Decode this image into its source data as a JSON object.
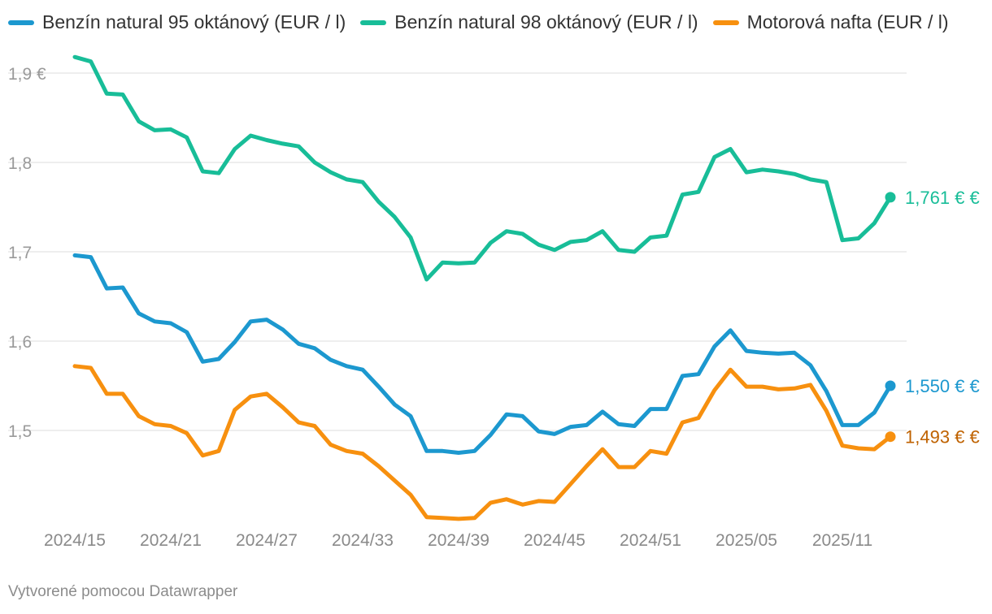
{
  "chart_data": {
    "type": "line",
    "title": "",
    "xlabel": "",
    "ylabel": "",
    "ylim": [
      1.4,
      1.92
    ],
    "y_ticks": [
      1.5,
      1.6,
      1.7,
      1.8,
      1.9
    ],
    "y_tick_labels": [
      "1,5",
      "1,6",
      "1,7",
      "1,8",
      "1,9 €"
    ],
    "x_tick_labels": [
      "2024/15",
      "2024/21",
      "2024/27",
      "2024/33",
      "2024/39",
      "2024/45",
      "2024/51",
      "2025/05",
      "2025/11"
    ],
    "x_tick_indices": [
      0,
      6,
      12,
      18,
      24,
      30,
      36,
      42,
      48
    ],
    "series": [
      {
        "name": "Benzín natural 95 oktánový (EUR / l)",
        "color": "#1c98cf",
        "end_label": "1,550 € €",
        "values": [
          1.696,
          1.694,
          1.659,
          1.66,
          1.631,
          1.622,
          1.62,
          1.61,
          1.577,
          1.58,
          1.599,
          1.622,
          1.624,
          1.613,
          1.597,
          1.592,
          1.579,
          1.572,
          1.568,
          1.549,
          1.529,
          1.516,
          1.477,
          1.477,
          1.475,
          1.477,
          1.495,
          1.518,
          1.516,
          1.499,
          1.496,
          1.504,
          1.506,
          1.521,
          1.507,
          1.505,
          1.524,
          1.524,
          1.561,
          1.563,
          1.594,
          1.612,
          1.589,
          1.587,
          1.586,
          1.587,
          1.573,
          1.544,
          1.506,
          1.506,
          1.52,
          1.55
        ]
      },
      {
        "name": "Benzín natural 98 oktánový (EUR / l)",
        "color": "#18bd98",
        "end_label": "1,761 € €",
        "values": [
          1.918,
          1.913,
          1.877,
          1.876,
          1.846,
          1.836,
          1.837,
          1.828,
          1.79,
          1.788,
          1.815,
          1.83,
          1.825,
          1.821,
          1.818,
          1.8,
          1.789,
          1.781,
          1.778,
          1.756,
          1.739,
          1.716,
          1.669,
          1.688,
          1.687,
          1.688,
          1.71,
          1.723,
          1.72,
          1.708,
          1.702,
          1.711,
          1.713,
          1.723,
          1.702,
          1.7,
          1.716,
          1.718,
          1.764,
          1.767,
          1.806,
          1.815,
          1.789,
          1.792,
          1.79,
          1.787,
          1.781,
          1.778,
          1.713,
          1.715,
          1.732,
          1.761
        ]
      },
      {
        "name": "Motorová nafta (EUR / l)",
        "color": "#f7900f",
        "end_label": "1,493 € €",
        "end_label_color": "#bf6200",
        "values": [
          1.572,
          1.57,
          1.541,
          1.541,
          1.516,
          1.507,
          1.505,
          1.497,
          1.472,
          1.477,
          1.523,
          1.538,
          1.541,
          1.526,
          1.509,
          1.505,
          1.484,
          1.477,
          1.474,
          1.46,
          1.444,
          1.428,
          1.403,
          1.402,
          1.401,
          1.402,
          1.419,
          1.423,
          1.417,
          1.421,
          1.42,
          1.44,
          1.46,
          1.479,
          1.459,
          1.459,
          1.477,
          1.474,
          1.509,
          1.514,
          1.545,
          1.568,
          1.549,
          1.549,
          1.546,
          1.547,
          1.551,
          1.522,
          1.483,
          1.48,
          1.479,
          1.493
        ]
      }
    ]
  },
  "footer": "Vytvorené pomocou Datawrapper"
}
